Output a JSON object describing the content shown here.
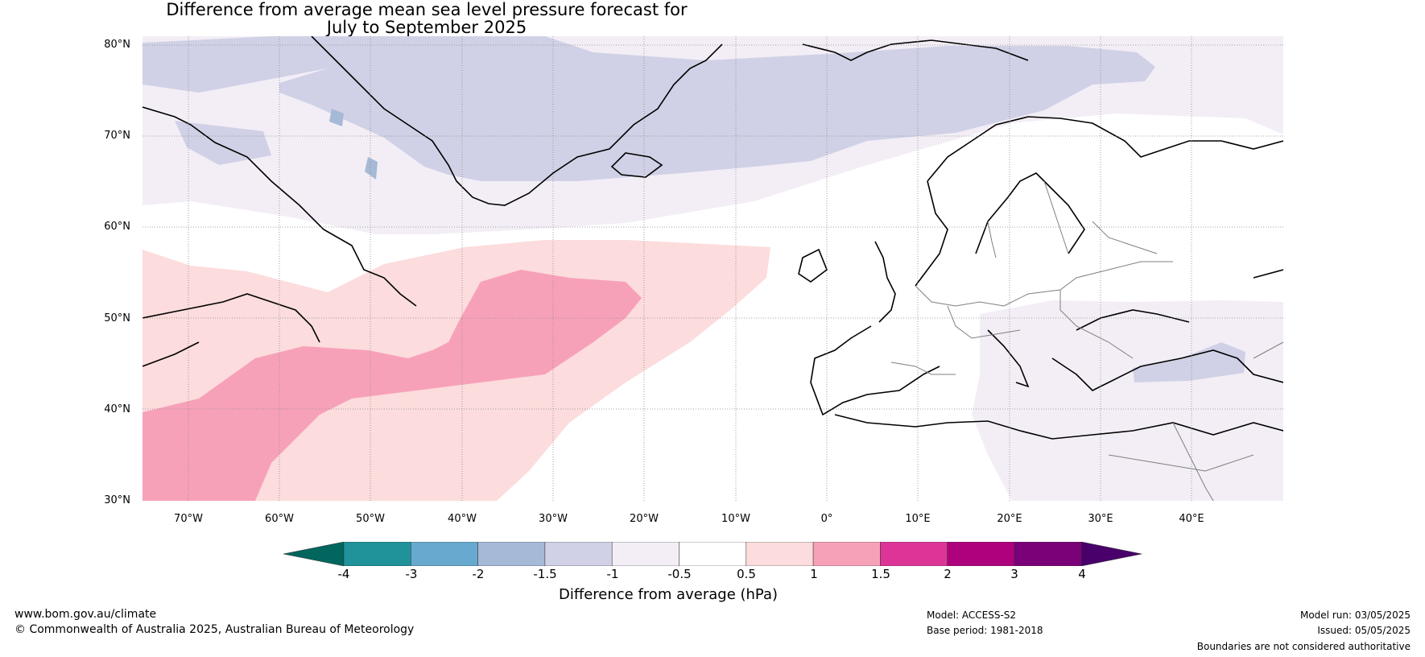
{
  "title": {
    "line1": "Difference from average mean sea level pressure forecast for",
    "line2": "July to September 2025"
  },
  "map": {
    "latitude_labels": [
      "80°N",
      "70°N",
      "60°N",
      "50°N",
      "40°N",
      "30°N"
    ],
    "longitude_labels": [
      "70°W",
      "60°W",
      "50°W",
      "40°W",
      "30°W",
      "20°W",
      "10°W",
      "0°",
      "10°E",
      "20°E",
      "30°E",
      "40°E"
    ],
    "lat_range": [
      30,
      81
    ],
    "lon_range": [
      -75,
      50
    ],
    "colors": {
      "below_1_5": "#d0d1e6",
      "below_1": "#f3eef6",
      "below_2": "#a6b9d6",
      "above_0_5": "#fcdcdc",
      "above_1": "#f7a1b9",
      "land_border": "#000000",
      "country_border": "#7f7f7f",
      "grid": "#888888"
    }
  },
  "colorbar": {
    "tick_labels": [
      "-4",
      "-3",
      "-2",
      "-1.5",
      "-1",
      "-0.5",
      "0.5",
      "1",
      "1.5",
      "2",
      "3",
      "4"
    ],
    "colors": [
      "#01665e",
      "#1f929a",
      "#67a9cf",
      "#a6b9d6",
      "#d0d1e6",
      "#f3eef6",
      "#ffffff",
      "#fcdcdc",
      "#f7a1b9",
      "#dd3497",
      "#ae017e",
      "#7a0177",
      "#49006a"
    ],
    "label": "Difference from average (hPa)"
  },
  "footer": {
    "website": "www.bom.gov.au/climate",
    "copyright": "© Commonwealth of Australia 2025, Australian Bureau of Meteorology",
    "model": "Model: ACCESS-S2",
    "base_period": "Base period: 1981-2018",
    "model_run": "Model run: 03/05/2025",
    "issued": "Issued: 05/05/2025",
    "disclaimer": "Boundaries are not considered authoritative"
  }
}
